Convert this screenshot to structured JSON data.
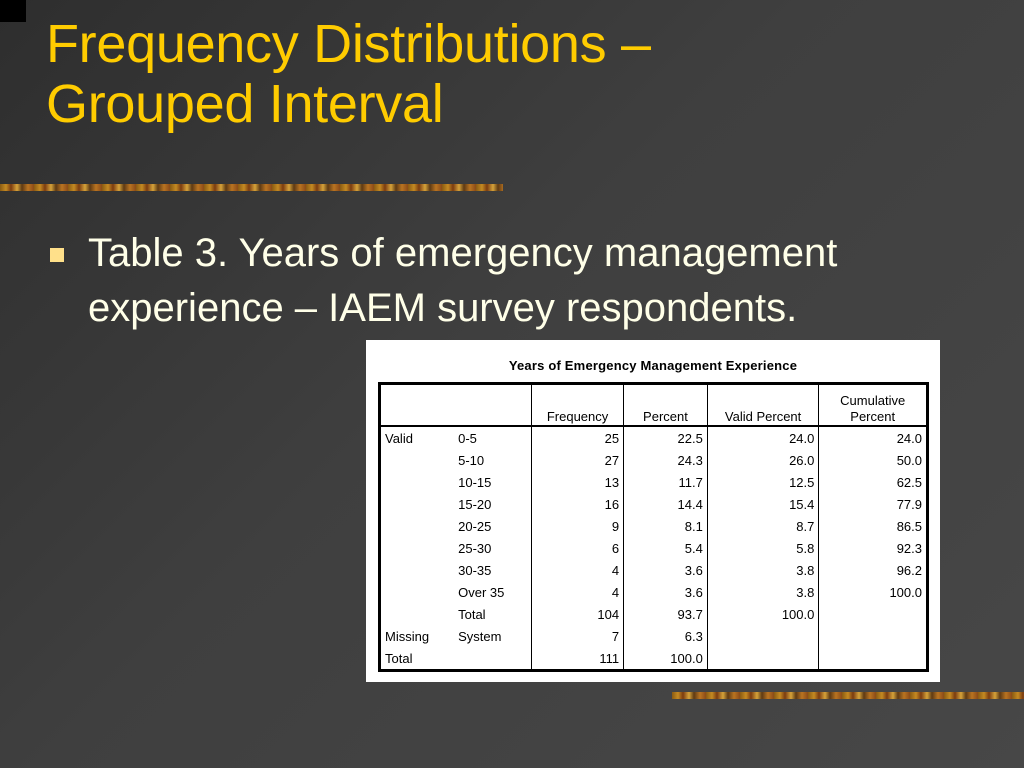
{
  "slide": {
    "title_line1": "Frequency Distributions –",
    "title_line2": "Grouped Interval",
    "bullet": "Table 3. Years of emergency management experience – IAEM survey respondents."
  },
  "colors": {
    "background": "#3a3a3a",
    "title": "#ffcc00",
    "bullet_text": "#ffffe8",
    "bullet_marker": "#ffe08a"
  },
  "table": {
    "caption": "Years of Emergency Management Experience",
    "headers": {
      "frequency": "Frequency",
      "percent": "Percent",
      "valid_percent": "Valid Percent",
      "cumulative_line1": "Cumulative",
      "cumulative_line2": "Percent"
    },
    "rows": [
      {
        "group": "Valid",
        "category": "0-5",
        "frequency": "25",
        "percent": "22.5",
        "valid_percent": "24.0",
        "cumulative": "24.0"
      },
      {
        "group": "",
        "category": "5-10",
        "frequency": "27",
        "percent": "24.3",
        "valid_percent": "26.0",
        "cumulative": "50.0"
      },
      {
        "group": "",
        "category": "10-15",
        "frequency": "13",
        "percent": "11.7",
        "valid_percent": "12.5",
        "cumulative": "62.5"
      },
      {
        "group": "",
        "category": "15-20",
        "frequency": "16",
        "percent": "14.4",
        "valid_percent": "15.4",
        "cumulative": "77.9"
      },
      {
        "group": "",
        "category": "20-25",
        "frequency": "9",
        "percent": "8.1",
        "valid_percent": "8.7",
        "cumulative": "86.5"
      },
      {
        "group": "",
        "category": "25-30",
        "frequency": "6",
        "percent": "5.4",
        "valid_percent": "5.8",
        "cumulative": "92.3"
      },
      {
        "group": "",
        "category": "30-35",
        "frequency": "4",
        "percent": "3.6",
        "valid_percent": "3.8",
        "cumulative": "96.2"
      },
      {
        "group": "",
        "category": "Over 35",
        "frequency": "4",
        "percent": "3.6",
        "valid_percent": "3.8",
        "cumulative": "100.0"
      },
      {
        "group": "",
        "category": "Total",
        "frequency": "104",
        "percent": "93.7",
        "valid_percent": "100.0",
        "cumulative": ""
      },
      {
        "group": "Missing",
        "category": "System",
        "frequency": "7",
        "percent": "6.3",
        "valid_percent": "",
        "cumulative": ""
      },
      {
        "group": "Total",
        "category": "",
        "frequency": "111",
        "percent": "100.0",
        "valid_percent": "",
        "cumulative": ""
      }
    ]
  }
}
